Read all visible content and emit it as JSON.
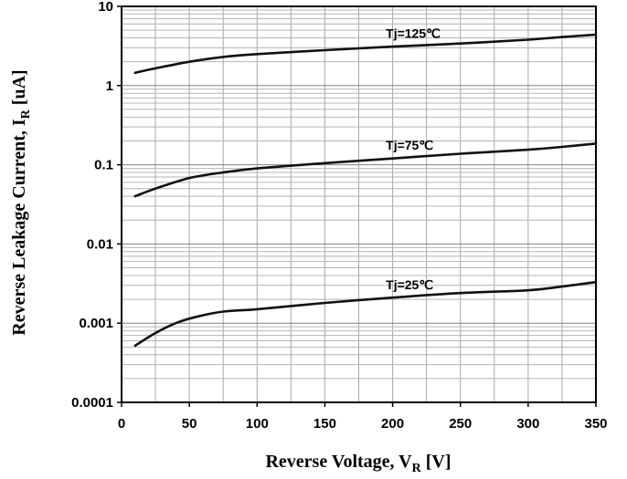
{
  "chart_data": {
    "type": "line",
    "title": "",
    "xlabel": {
      "main": "Reverse Voltage, V",
      "sub": "R",
      "unit": " [V]"
    },
    "ylabel": {
      "main": "Reverse Leakage Current, I",
      "sub": "R",
      "unit": " [uA]"
    },
    "xlim": [
      0,
      350
    ],
    "ylim": [
      0.0001,
      10
    ],
    "yscale": "log",
    "grid": true,
    "legend": "none",
    "x_ticks": [
      "0",
      "50",
      "100",
      "150",
      "200",
      "250",
      "300",
      "350"
    ],
    "y_ticks": [
      "0.0001",
      "0.001",
      "0.01",
      "0.1",
      "1",
      "10"
    ],
    "series": [
      {
        "name": "Tj=125℃",
        "x": [
          10,
          25,
          50,
          75,
          100,
          150,
          200,
          250,
          300,
          325,
          350
        ],
        "y": [
          1.45,
          1.65,
          2.0,
          2.3,
          2.5,
          2.8,
          3.1,
          3.4,
          3.8,
          4.1,
          4.4
        ]
      },
      {
        "name": "Tj=75℃",
        "x": [
          10,
          25,
          50,
          75,
          100,
          150,
          200,
          250,
          300,
          325,
          350
        ],
        "y": [
          0.04,
          0.05,
          0.068,
          0.08,
          0.09,
          0.105,
          0.12,
          0.138,
          0.155,
          0.168,
          0.185
        ]
      },
      {
        "name": "Tj=25℃",
        "x": [
          10,
          25,
          40,
          55,
          75,
          100,
          150,
          200,
          250,
          300,
          325,
          350
        ],
        "y": [
          0.00052,
          0.00075,
          0.001,
          0.0012,
          0.0014,
          0.0015,
          0.0018,
          0.0021,
          0.0024,
          0.0026,
          0.0029,
          0.0033
        ]
      }
    ]
  }
}
